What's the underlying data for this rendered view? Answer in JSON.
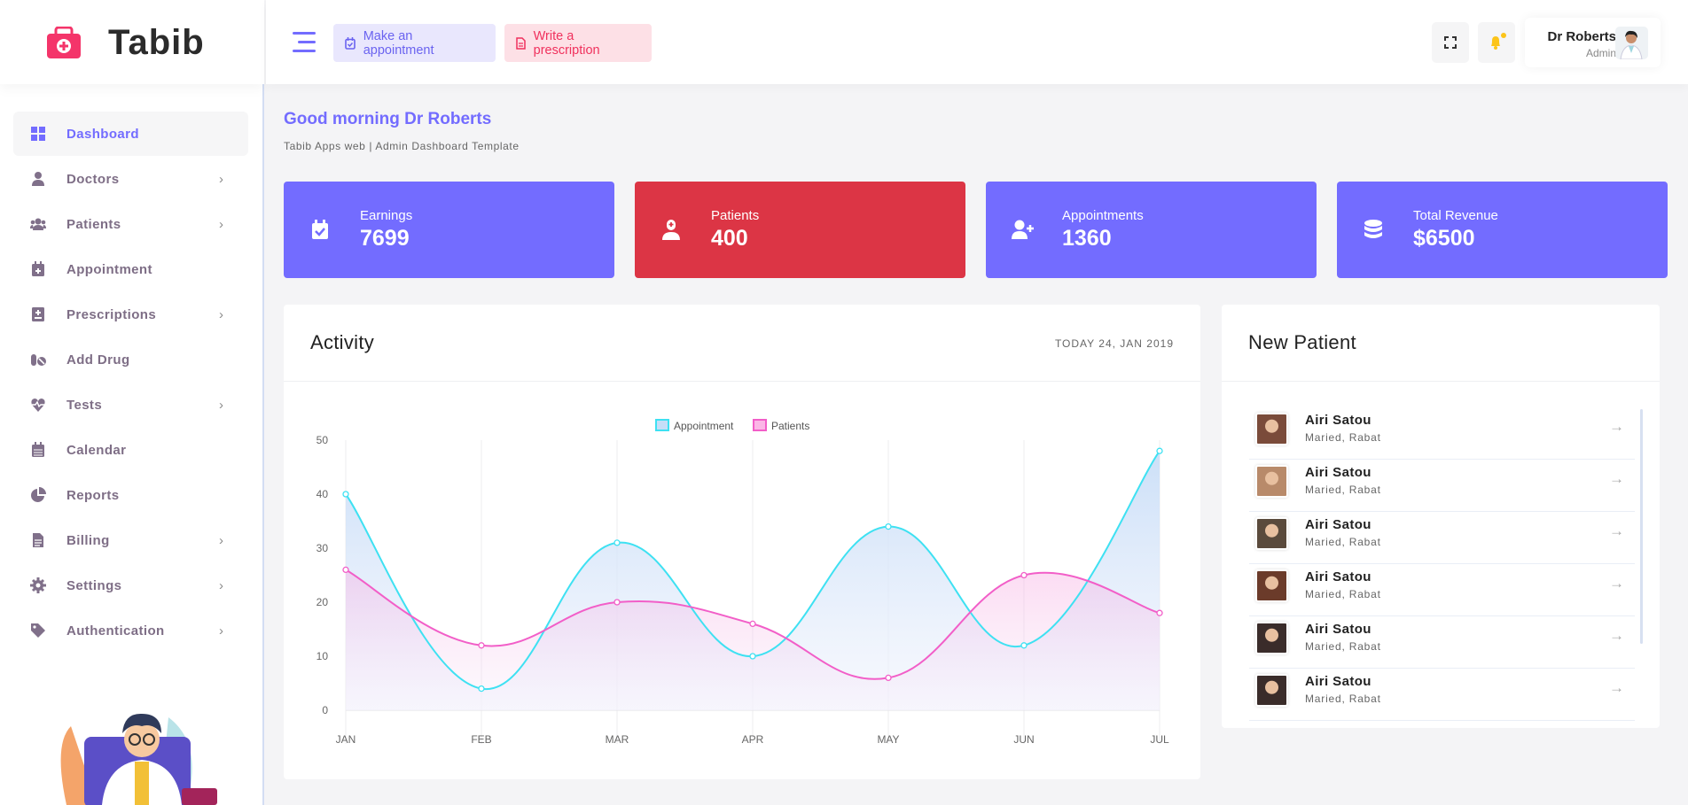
{
  "brand": {
    "name": "Tabib",
    "accent": "#736cff"
  },
  "header": {
    "make_appointment": "Make an appointment",
    "write_prescription": "Write a prescription",
    "user_name": "Dr Roberts",
    "user_role": "Admin"
  },
  "sidebar": {
    "items": [
      {
        "label": "Dashboard",
        "icon": "grid-icon",
        "active": true,
        "chevron": false
      },
      {
        "label": "Doctors",
        "icon": "user-doctor-icon",
        "chevron": true
      },
      {
        "label": "Patients",
        "icon": "users-icon",
        "chevron": true
      },
      {
        "label": "Appointment",
        "icon": "calendar-plus-icon",
        "chevron": false
      },
      {
        "label": "Prescriptions",
        "icon": "notes-medical-icon",
        "chevron": true
      },
      {
        "label": "Add Drug",
        "icon": "pills-icon",
        "chevron": false
      },
      {
        "label": "Tests",
        "icon": "heartbeat-icon",
        "chevron": true
      },
      {
        "label": "Calendar",
        "icon": "calendar-icon",
        "chevron": false
      },
      {
        "label": "Reports",
        "icon": "pie-chart-icon",
        "chevron": false
      },
      {
        "label": "Billing",
        "icon": "file-invoice-icon",
        "chevron": true
      },
      {
        "label": "Settings",
        "icon": "gear-icon",
        "chevron": true
      },
      {
        "label": "Authentication",
        "icon": "tag-icon",
        "chevron": true
      }
    ]
  },
  "page": {
    "greeting": "Good morning Dr Roberts",
    "subtitle": "Tabib Apps web | Admin Dashboard Template"
  },
  "stats": [
    {
      "label": "Earnings",
      "value": "7699",
      "color": "#736cff",
      "icon": "calendar-check-icon"
    },
    {
      "label": "Patients",
      "value": "400",
      "color": "#dc3545",
      "icon": "user-nurse-icon"
    },
    {
      "label": "Appointments",
      "value": "1360",
      "color": "#736cff",
      "icon": "user-plus-icon"
    },
    {
      "label": "Total Revenue",
      "value": "$6500",
      "color": "#736cff",
      "icon": "database-icon"
    }
  ],
  "activity": {
    "title": "Activity",
    "date": "TODAY 24, JAN 2019"
  },
  "chart_data": {
    "type": "line",
    "categories": [
      "JAN",
      "FEB",
      "MAR",
      "APR",
      "MAY",
      "JUN",
      "JUL"
    ],
    "series": [
      {
        "name": "Appointment",
        "values": [
          40,
          4,
          31,
          10,
          34,
          12,
          48
        ],
        "color": "#3ee1f2"
      },
      {
        "name": "Patients",
        "values": [
          26,
          12,
          20,
          16,
          6,
          25,
          18
        ],
        "color": "#f25ec8"
      }
    ],
    "ylim": [
      0,
      50
    ],
    "yticks": [
      0,
      10,
      20,
      30,
      40,
      50
    ],
    "legend": "top-center",
    "grid": "vertical"
  },
  "new_patient": {
    "title": "New Patient",
    "items": [
      {
        "name": "Airi Satou",
        "detail": "Maried, Rabat"
      },
      {
        "name": "Airi Satou",
        "detail": "Maried, Rabat"
      },
      {
        "name": "Airi Satou",
        "detail": "Maried, Rabat"
      },
      {
        "name": "Airi Satou",
        "detail": "Maried, Rabat"
      },
      {
        "name": "Airi Satou",
        "detail": "Maried, Rabat"
      },
      {
        "name": "Airi Satou",
        "detail": "Maried, Rabat"
      }
    ]
  }
}
